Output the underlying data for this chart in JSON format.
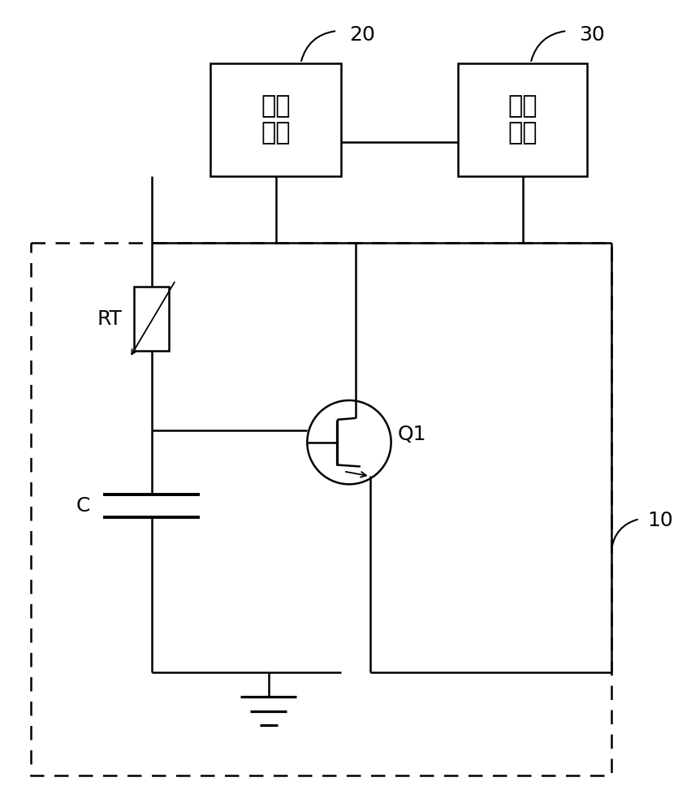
{
  "bg_color": "#ffffff",
  "line_color": "#000000",
  "lw": 1.8,
  "fig_width": 8.51,
  "fig_height": 10.0,
  "labels": {
    "module1": "转换\n模块",
    "module2": "控制\n模块",
    "label_20": "20",
    "label_30": "30",
    "label_10": "10",
    "label_RT": "RT",
    "label_C": "C",
    "label_Q1": "Q1"
  }
}
